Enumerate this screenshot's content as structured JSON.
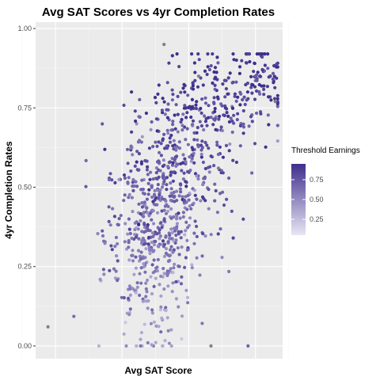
{
  "chart_data": {
    "type": "scatter",
    "title": "Avg SAT Scores vs 4yr Completion Rates",
    "xlabel": "Avg SAT Score",
    "ylabel": "4yr Completion Rates",
    "xlim": [
      0,
      1
    ],
    "ylim": [
      -0.04,
      1.02
    ],
    "y_ticks": [
      "0.00",
      "0.25",
      "0.50",
      "0.75",
      "1.00"
    ],
    "y_tick_values": [
      0,
      0.25,
      0.5,
      0.75,
      1.0
    ],
    "x_tick_labels_shown": false,
    "grid": true,
    "legend": {
      "title": "Threshold Earnings",
      "position": "right",
      "tick_labels": [
        "0.25",
        "0.50",
        "0.75"
      ],
      "tick_values": [
        0.25,
        0.5,
        0.75
      ],
      "range": [
        0.05,
        0.95
      ],
      "color_low": "#e8e6f4",
      "color_high": "#3f2e8c"
    },
    "na_color": "#808080",
    "point_color_note": "color encodes Threshold Earnings; gray points have no value",
    "clusters": [
      {
        "count": 420,
        "x_mean": 0.46,
        "x_sd": 0.09,
        "y_mean": 0.34,
        "y_sd": 0.16
      },
      {
        "count": 330,
        "x_mean": 0.58,
        "x_sd": 0.1,
        "y_mean": 0.56,
        "y_sd": 0.15
      },
      {
        "count": 180,
        "x_mean": 0.76,
        "x_sd": 0.11,
        "y_mean": 0.76,
        "y_sd": 0.09
      },
      {
        "count": 60,
        "x_mean": 0.92,
        "x_sd": 0.04,
        "y_mean": 0.86,
        "y_sd": 0.05
      }
    ],
    "highlighted_points": [
      {
        "x": 0.05,
        "y": 0.06,
        "earnings": null
      },
      {
        "x": 0.52,
        "y": 0.95,
        "earnings": null
      },
      {
        "x": 0.66,
        "y": 0.85,
        "earnings": null
      },
      {
        "x": 0.74,
        "y": 0.56,
        "earnings": null
      },
      {
        "x": 0.97,
        "y": 0.77,
        "earnings": null
      },
      {
        "x": 0.86,
        "y": 0.0,
        "earnings": 0.7
      },
      {
        "x": 0.71,
        "y": 0.0,
        "earnings": null
      },
      {
        "x": 0.8,
        "y": 0.34,
        "earnings": 0.85
      }
    ]
  }
}
